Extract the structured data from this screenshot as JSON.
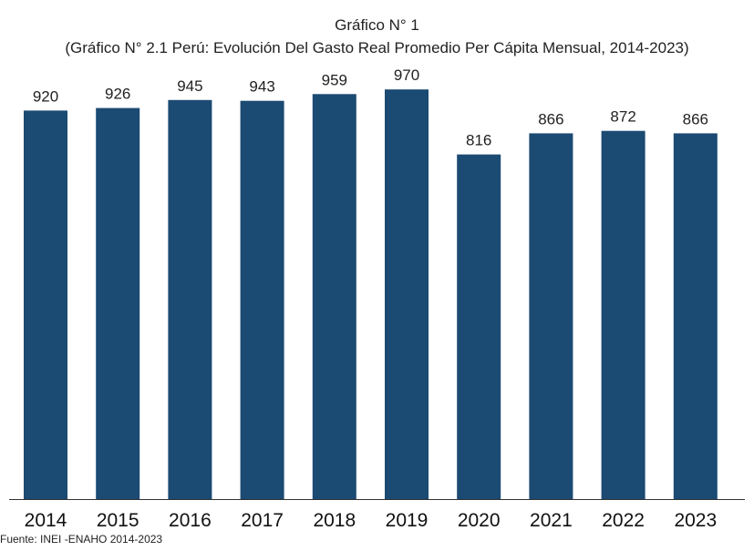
{
  "chart_data": {
    "type": "bar",
    "title": "Gráfico N° 1",
    "subtitle": "(Gráfico N° 2.1 Perú: Evolución Del Gasto Real Promedio Per Cápita Mensual, 2014-2023)",
    "categories": [
      "2014",
      "2015",
      "2016",
      "2017",
      "2018",
      "2019",
      "2020",
      "2021",
      "2022",
      "2023"
    ],
    "series": [
      {
        "values": [
          920,
          926,
          945,
          943,
          959,
          970,
          816,
          866,
          872,
          866
        ]
      }
    ],
    "data_labels": [
      "920",
      "926",
      "945",
      "943",
      "959",
      "970",
      "816",
      "866",
      "872",
      "866"
    ],
    "xlabel": "",
    "ylabel": "",
    "ylim": [
      0,
      1000
    ],
    "grid": false,
    "bar_color": "#1b4a73",
    "axis_color": "#333333"
  },
  "source": "Fuente: INEI -ENAHO 2014-2023"
}
